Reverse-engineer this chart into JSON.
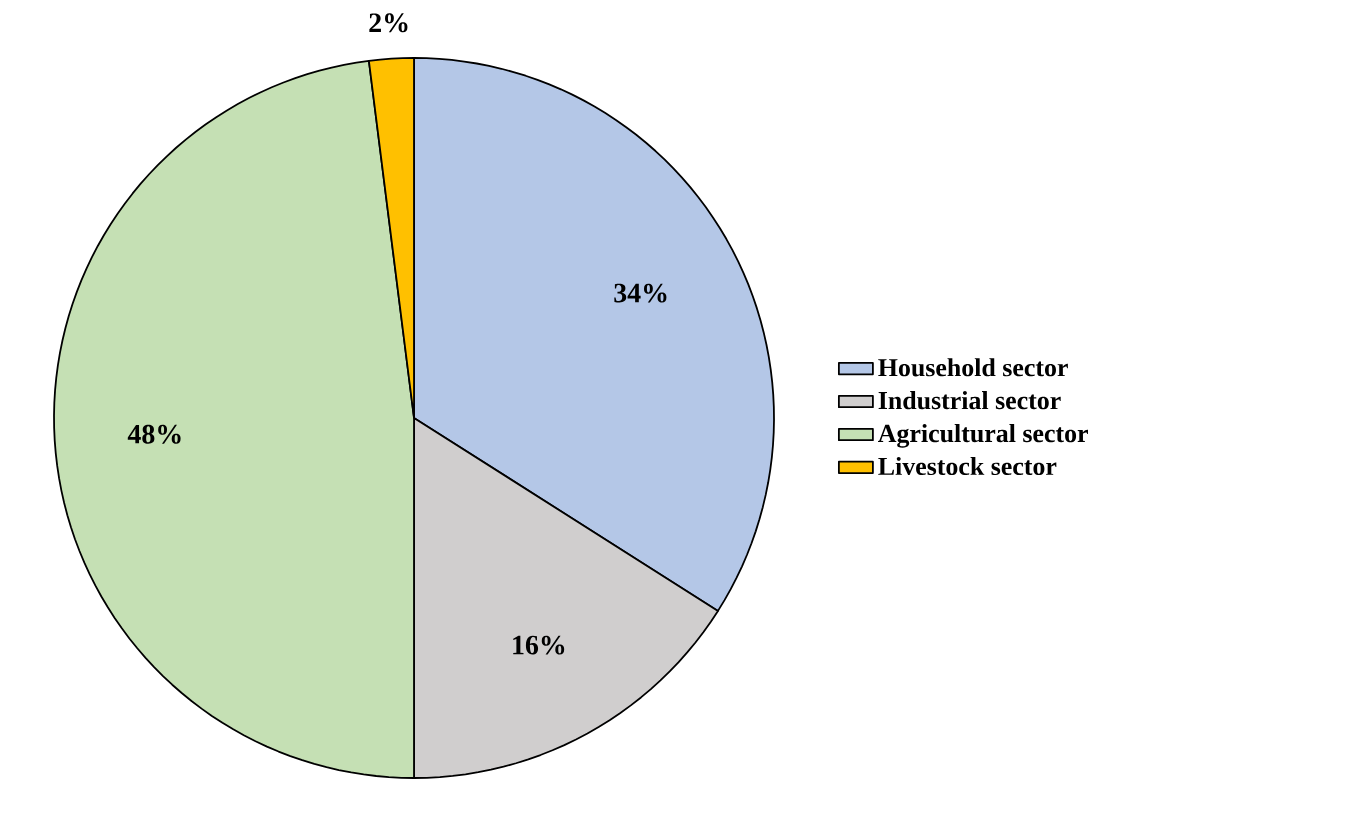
{
  "chart_data": {
    "type": "pie",
    "categories": [
      "Household sector",
      "Industrial sector",
      "Agricultural sector",
      "Livestock sector"
    ],
    "values": [
      34,
      16,
      48,
      2
    ],
    "value_labels": [
      "34%",
      "16%",
      "48%",
      "2%"
    ],
    "colors": [
      "#b4c7e7",
      "#d0cece",
      "#c5e0b4",
      "#ffc000"
    ],
    "legend": "right"
  }
}
